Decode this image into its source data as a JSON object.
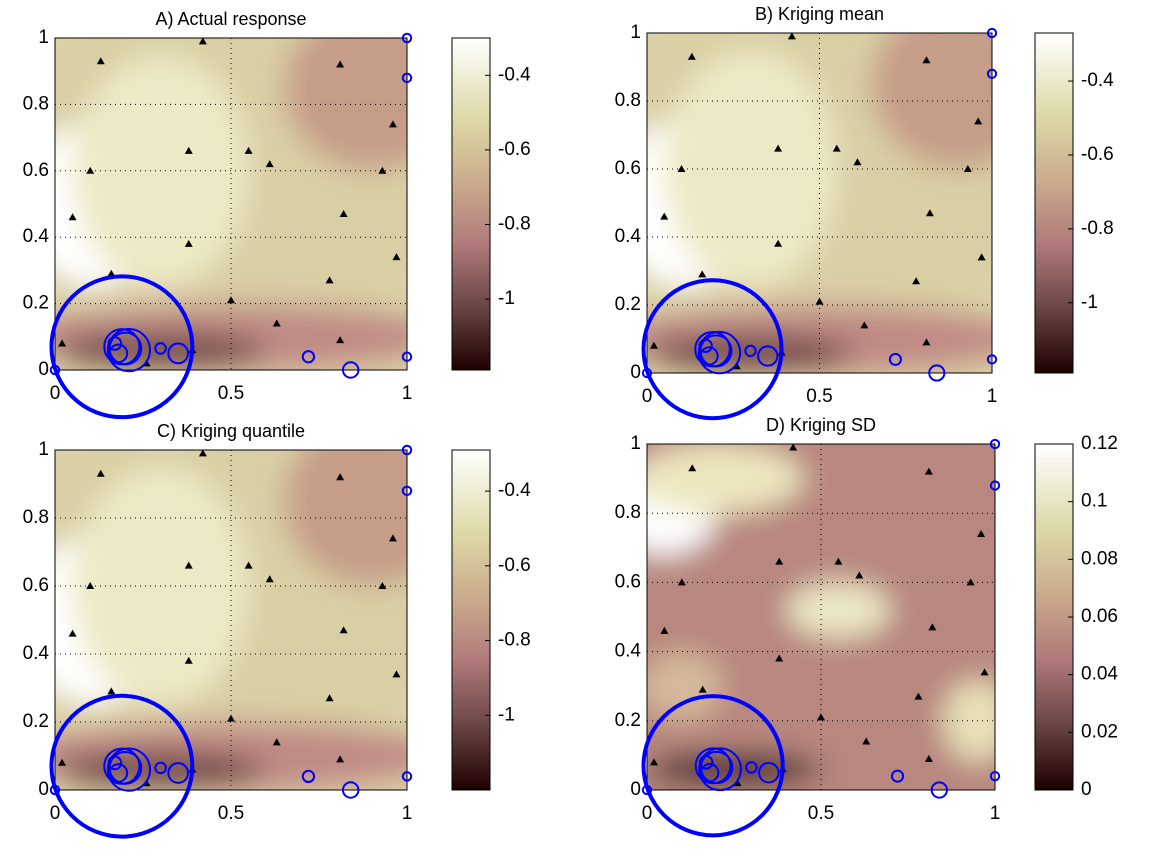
{
  "chart_data": [
    {
      "type": "contour",
      "title": "A) Actual response",
      "xlim": [
        0,
        1
      ],
      "ylim": [
        0,
        1
      ],
      "xticks": [
        0,
        0.5,
        1
      ],
      "yticks": [
        0,
        0.2,
        0.4,
        0.6,
        0.8,
        1
      ],
      "grid": true,
      "clim": [
        -1.19,
        -0.3
      ],
      "cticks": [
        -1,
        -0.8,
        -0.6,
        -0.4
      ],
      "colormap": "pink",
      "points": {
        "color": "#000000",
        "x": [
          0.42,
          0.13,
          0.81,
          0.96,
          0.38,
          0.55,
          0.61,
          0.93,
          0.1,
          0.05,
          0.82,
          0.38,
          0.97,
          0.78,
          0.16,
          0.5,
          0.63,
          0.81,
          0.02,
          0.26,
          0.39
        ],
        "y": [
          0.99,
          0.93,
          0.92,
          0.74,
          0.66,
          0.66,
          0.62,
          0.6,
          0.6,
          0.46,
          0.47,
          0.38,
          0.34,
          0.27,
          0.29,
          0.21,
          0.14,
          0.09,
          0.08,
          0.02,
          0.06
        ]
      },
      "circles": {
        "color": "#0000ff",
        "x": [
          0,
          1,
          1,
          1,
          0.72,
          0.84,
          0.19,
          0.2,
          0.21,
          0.18,
          0.17,
          0.3,
          0.35,
          0.19
        ],
        "y": [
          0,
          1,
          0.88,
          0.04,
          0.04,
          0,
          0.07,
          0.065,
          0.06,
          0.05,
          0.08,
          0.065,
          0.05,
          0.07
        ],
        "size": [
          0.012,
          0.012,
          0.012,
          0.012,
          0.016,
          0.022,
          0.05,
          0.045,
          0.06,
          0.025,
          0.018,
          0.015,
          0.028,
          0.2
        ]
      }
    },
    {
      "type": "contour",
      "title": "B) Kriging mean",
      "xlim": [
        0,
        1
      ],
      "ylim": [
        0,
        1
      ],
      "xticks": [
        0,
        0.5,
        1
      ],
      "yticks": [
        0,
        0.2,
        0.4,
        0.6,
        0.8,
        1
      ],
      "grid": true,
      "clim": [
        -1.19,
        -0.27
      ],
      "cticks": [
        -1,
        -0.8,
        -0.6,
        -0.4
      ],
      "colormap": "pink",
      "points": {
        "color": "#000000",
        "x": [
          0.42,
          0.13,
          0.81,
          0.96,
          0.38,
          0.55,
          0.61,
          0.93,
          0.1,
          0.05,
          0.82,
          0.38,
          0.97,
          0.78,
          0.16,
          0.5,
          0.63,
          0.81,
          0.02,
          0.26,
          0.39
        ],
        "y": [
          0.99,
          0.93,
          0.92,
          0.74,
          0.66,
          0.66,
          0.62,
          0.6,
          0.6,
          0.46,
          0.47,
          0.38,
          0.34,
          0.27,
          0.29,
          0.21,
          0.14,
          0.09,
          0.08,
          0.02,
          0.06
        ]
      },
      "circles": {
        "color": "#0000ff",
        "x": [
          0,
          1,
          1,
          1,
          0.72,
          0.84,
          0.19,
          0.2,
          0.21,
          0.18,
          0.17,
          0.3,
          0.35,
          0.19
        ],
        "y": [
          0,
          1,
          0.88,
          0.04,
          0.04,
          0,
          0.07,
          0.065,
          0.06,
          0.05,
          0.08,
          0.065,
          0.05,
          0.07
        ],
        "size": [
          0.012,
          0.012,
          0.012,
          0.012,
          0.016,
          0.022,
          0.05,
          0.045,
          0.06,
          0.025,
          0.018,
          0.015,
          0.028,
          0.2
        ]
      }
    },
    {
      "type": "contour",
      "title": "C) Kriging quantile",
      "xlim": [
        0,
        1
      ],
      "ylim": [
        0,
        1
      ],
      "xticks": [
        0,
        0.5,
        1
      ],
      "yticks": [
        0,
        0.2,
        0.4,
        0.6,
        0.8,
        1
      ],
      "grid": true,
      "clim": [
        -1.2,
        -0.29
      ],
      "cticks": [
        -1,
        -0.8,
        -0.6,
        -0.4
      ],
      "colormap": "pink",
      "points": {
        "color": "#000000",
        "x": [
          0.42,
          0.13,
          0.81,
          0.96,
          0.38,
          0.55,
          0.61,
          0.93,
          0.1,
          0.05,
          0.82,
          0.38,
          0.97,
          0.78,
          0.16,
          0.5,
          0.63,
          0.81,
          0.02,
          0.26,
          0.39
        ],
        "y": [
          0.99,
          0.93,
          0.92,
          0.74,
          0.66,
          0.66,
          0.62,
          0.6,
          0.6,
          0.46,
          0.47,
          0.38,
          0.34,
          0.27,
          0.29,
          0.21,
          0.14,
          0.09,
          0.08,
          0.02,
          0.06
        ]
      },
      "circles": {
        "color": "#0000ff",
        "x": [
          0,
          1,
          1,
          1,
          0.72,
          0.84,
          0.19,
          0.2,
          0.21,
          0.18,
          0.17,
          0.3,
          0.35,
          0.19
        ],
        "y": [
          0,
          1,
          0.88,
          0.04,
          0.04,
          0,
          0.07,
          0.065,
          0.06,
          0.05,
          0.08,
          0.065,
          0.05,
          0.07
        ],
        "size": [
          0.012,
          0.012,
          0.012,
          0.012,
          0.016,
          0.022,
          0.05,
          0.045,
          0.06,
          0.025,
          0.018,
          0.015,
          0.028,
          0.2
        ]
      }
    },
    {
      "type": "contour",
      "title": "D) Kriging SD",
      "xlim": [
        0,
        1
      ],
      "ylim": [
        0,
        1
      ],
      "xticks": [
        0,
        0.5,
        1
      ],
      "yticks": [
        0,
        0.2,
        0.4,
        0.6,
        0.8,
        1
      ],
      "grid": true,
      "clim": [
        0,
        0.12
      ],
      "cticks": [
        0,
        0.02,
        0.04,
        0.06,
        0.08,
        0.1,
        0.12
      ],
      "colormap": "pink",
      "points": {
        "color": "#000000",
        "x": [
          0.42,
          0.13,
          0.81,
          0.96,
          0.38,
          0.55,
          0.61,
          0.93,
          0.1,
          0.05,
          0.82,
          0.38,
          0.97,
          0.78,
          0.16,
          0.5,
          0.63,
          0.81,
          0.02,
          0.26,
          0.39
        ],
        "y": [
          0.99,
          0.93,
          0.92,
          0.74,
          0.66,
          0.66,
          0.62,
          0.6,
          0.6,
          0.46,
          0.47,
          0.38,
          0.34,
          0.27,
          0.29,
          0.21,
          0.14,
          0.09,
          0.08,
          0.02,
          0.06
        ]
      },
      "circles": {
        "color": "#0000ff",
        "x": [
          0,
          1,
          1,
          1,
          0.72,
          0.84,
          0.19,
          0.2,
          0.21,
          0.18,
          0.17,
          0.3,
          0.35,
          0.19
        ],
        "y": [
          0,
          1,
          0.88,
          0.04,
          0.04,
          0,
          0.07,
          0.065,
          0.06,
          0.05,
          0.08,
          0.065,
          0.05,
          0.07
        ],
        "size": [
          0.012,
          0.012,
          0.012,
          0.012,
          0.016,
          0.022,
          0.05,
          0.045,
          0.06,
          0.025,
          0.018,
          0.015,
          0.028,
          0.2
        ]
      }
    }
  ]
}
